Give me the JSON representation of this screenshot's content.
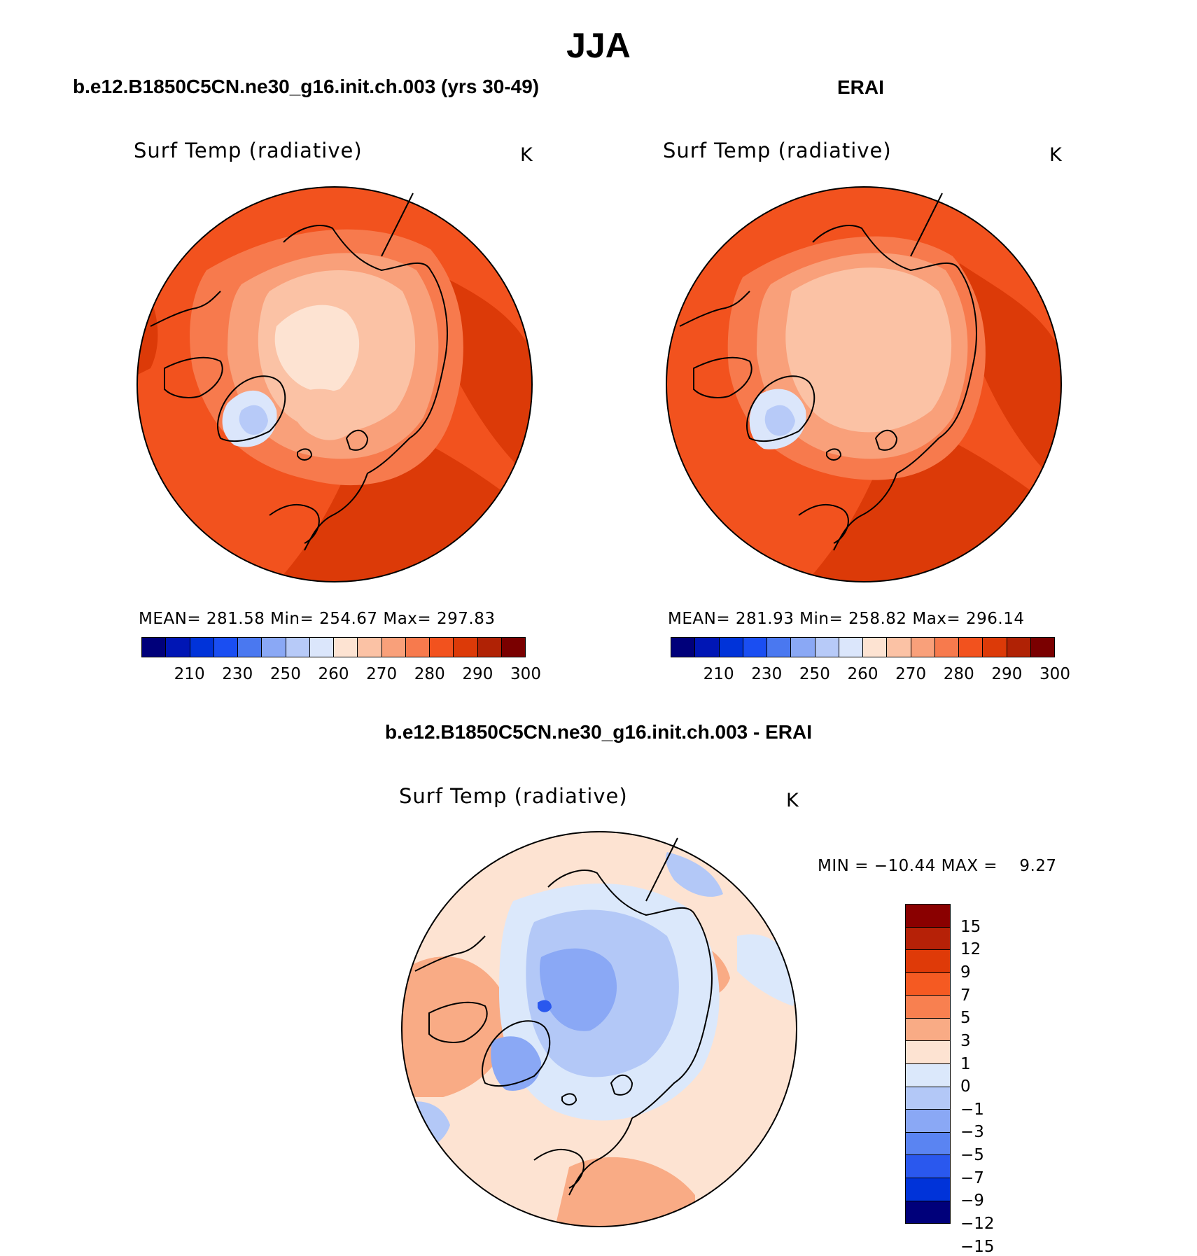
{
  "title": "JJA",
  "colors": {
    "abs_scale": [
      "#00007a",
      "#0016b5",
      "#0033d9",
      "#1a4ef2",
      "#4a78f0",
      "#8aa8f5",
      "#b7caf8",
      "#dbe6fb",
      "#fde3d2",
      "#fbc2a5",
      "#f9a07a",
      "#f77a4d",
      "#f2521e",
      "#dc3a08",
      "#b02205",
      "#7a0000"
    ],
    "diff_scale": [
      "#8a0000",
      "#b62107",
      "#df3a08",
      "#f55a22",
      "#f88050",
      "#f9ab85",
      "#fde3d2",
      "#dbe8fb",
      "#b3c8f7",
      "#8aa8f5",
      "#5a84f2",
      "#2a58ee",
      "#0033d9",
      "#00007a"
    ]
  },
  "panels": [
    {
      "case_title": "b.e12.B1850C5CN.ne30_g16.init.ch.003 (yrs 30-49)",
      "variable": "Surf Temp (radiative)",
      "units": "K",
      "stats": "MEAN= 281.58  Min= 254.67  Max= 297.83",
      "colorbar_ticks": [
        "210",
        "230",
        "250",
        "260",
        "270",
        "280",
        "290",
        "300"
      ]
    },
    {
      "case_title": "ERAI",
      "variable": "Surf Temp (radiative)",
      "units": "K",
      "stats": "MEAN= 281.93  Min= 258.82  Max= 296.14",
      "colorbar_ticks": [
        "210",
        "230",
        "250",
        "260",
        "270",
        "280",
        "290",
        "300"
      ]
    },
    {
      "case_title": "b.e12.B1850C5CN.ne30_g16.init.ch.003 - ERAI",
      "variable": "Surf Temp (radiative)",
      "units": "K",
      "stats": "MIN = −10.44 MAX =    9.27",
      "colorbar_ticks": [
        "15",
        "12",
        "9",
        "7",
        "5",
        "3",
        "1",
        "0",
        "−1",
        "−3",
        "−5",
        "−7",
        "−9",
        "−12",
        "−15"
      ]
    }
  ],
  "map": {
    "projection": "north polar stereographic",
    "type": "filled contour",
    "coastlines": true
  }
}
